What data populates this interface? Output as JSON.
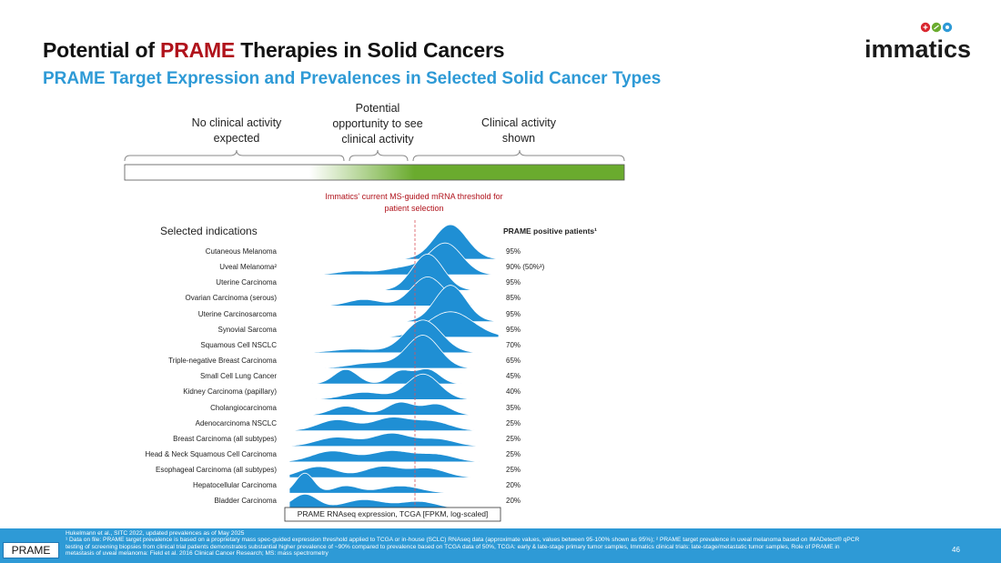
{
  "title": {
    "pre": "Potential of ",
    "highlight": "PRAME",
    "post": " Therapies in Solid Cancers"
  },
  "subtitle": "PRAME Target Expression and Prevalences in Selected Solid Cancer Types",
  "logo": {
    "text": "immatics"
  },
  "categories": {
    "none": "No clinical activity expected",
    "potential": "Potential opportunity to see clinical activity",
    "shown": "Clinical activity shown"
  },
  "threshold_label": "Immatics' current MS-guided mRNA threshold for patient selection",
  "left_header": "Selected indications",
  "right_header": "PRAME positive patients¹",
  "x_axis_label": "PRAME RNAseq expression, TCGA [FPKM, log-scaled]",
  "rows": [
    {
      "name": "Cutaneous Melanoma",
      "pct": "95%"
    },
    {
      "name": "Uveal Melanoma²",
      "pct": "90% (50%³)"
    },
    {
      "name": "Uterine Carcinoma",
      "pct": "95%"
    },
    {
      "name": "Ovarian Carcinoma (serous)",
      "pct": "85%"
    },
    {
      "name": "Uterine Carcinosarcoma",
      "pct": "95%"
    },
    {
      "name": "Synovial Sarcoma",
      "pct": "95%"
    },
    {
      "name": "Squamous Cell NSCLC",
      "pct": "70%"
    },
    {
      "name": "Triple-negative Breast Carcinoma",
      "pct": "65%"
    },
    {
      "name": "Small Cell Lung Cancer",
      "pct": "45%"
    },
    {
      "name": "Kidney Carcinoma (papillary)",
      "pct": "40%"
    },
    {
      "name": "Cholangiocarcinoma",
      "pct": "35%"
    },
    {
      "name": "Adenocarcinoma NSCLC",
      "pct": "25%"
    },
    {
      "name": "Breast Carcinoma (all subtypes)",
      "pct": "25%"
    },
    {
      "name": "Head & Neck Squamous Cell Carcinoma",
      "pct": "25%"
    },
    {
      "name": "Esophageal Carcinoma (all subtypes)",
      "pct": "25%"
    },
    {
      "name": "Hepatocellular Carcinoma",
      "pct": "20%"
    },
    {
      "name": "Bladder Carcinoma",
      "pct": "20%"
    }
  ],
  "footer": {
    "tag": "PRAME",
    "line1": "Hukelmann et al., SITC 2022, updated prevalences as of May 2025",
    "line2": "¹ Data on file: PRAME target prevalence is based on a proprietary mass spec-guided expression threshold applied to TCGA or in-house (SCLC) RNAseq data (approximate values, values between 95-100% shown as 95%); ² PRAME target prevalence in uveal melanoma based on IMADetect® qPCR testing of screening biopsies from clinical trial patients demonstrates substantial higher prevalence of ~90% compared to prevalence based on TCGA data of 50%, TCGA: early & late-stage primary tumor samples, Immatics clinical trials: late-stage/metastatic tumor samples, Role of PRAME in metastasis of uveal melanoma: Field et al. 2016 Clinical Cancer Research; MS: mass spectrometry",
    "page": "46"
  },
  "colors": {
    "accent_blue": "#2e9ad6",
    "ridge_blue": "#1f8fd4",
    "highlight_red": "#b0121b",
    "green": "#6aab2e"
  }
}
